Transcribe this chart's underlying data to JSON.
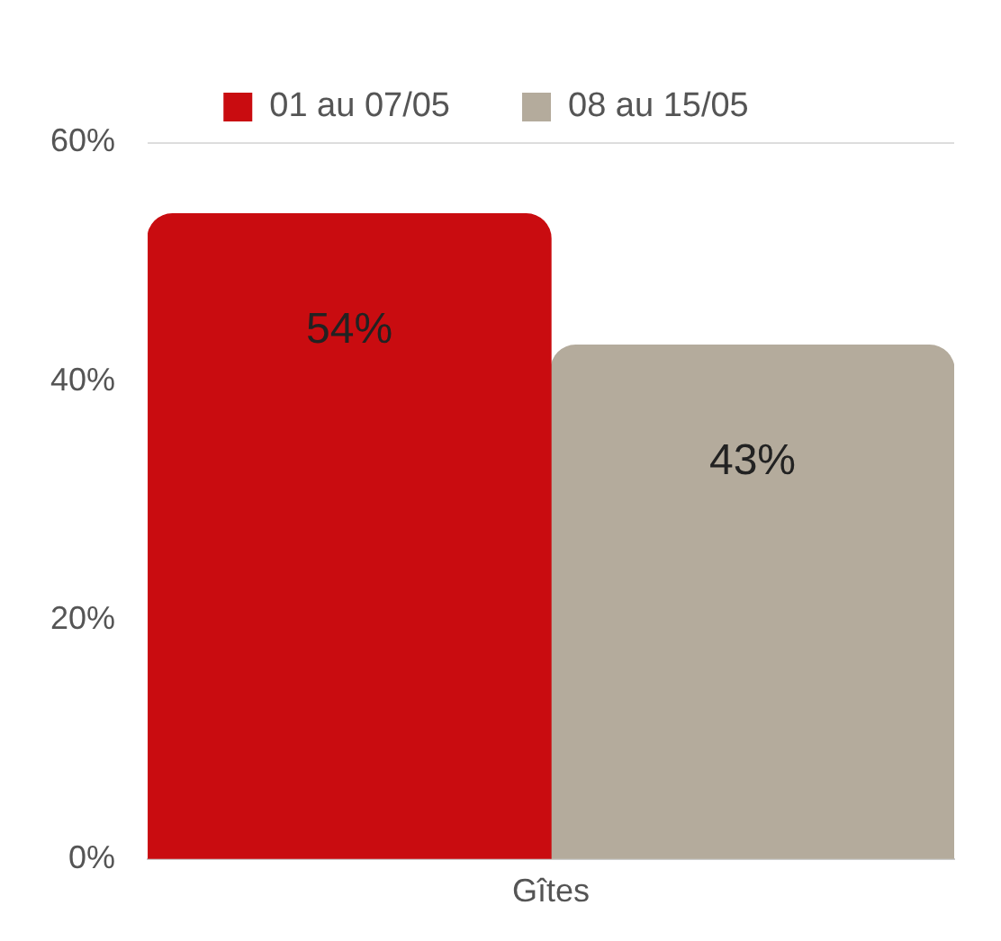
{
  "chart_data": {
    "type": "bar",
    "categories": [
      "Gîtes"
    ],
    "series": [
      {
        "name": "01 au 07/05",
        "color": "#c90c10",
        "values": [
          54
        ],
        "value_labels": [
          "54%"
        ]
      },
      {
        "name": "08 au 15/05",
        "color": "#b4ab9c",
        "values": [
          43
        ],
        "value_labels": [
          "43%"
        ]
      }
    ],
    "ylim": [
      0,
      60
    ],
    "yticks": [
      {
        "value": 0,
        "label": "0%"
      },
      {
        "value": 20,
        "label": "20%"
      },
      {
        "value": 40,
        "label": "40%"
      },
      {
        "value": 60,
        "label": "60%"
      }
    ],
    "legend": "top"
  }
}
